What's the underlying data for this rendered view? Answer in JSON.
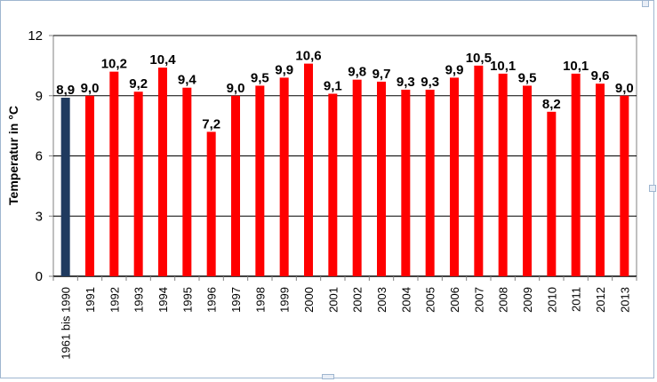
{
  "chart_data": {
    "type": "bar",
    "title": "",
    "xlabel": "",
    "ylabel": "Temperatur in °C",
    "ylim": [
      0,
      12
    ],
    "yticks": [
      "0",
      "3",
      "6",
      "9",
      "12"
    ],
    "grid": true,
    "categories": [
      "1961 bis 1990",
      "1991",
      "1992",
      "1993",
      "1994",
      "1995",
      "1996",
      "1997",
      "1998",
      "1999",
      "2000",
      "2001",
      "2002",
      "2003",
      "2004",
      "2005",
      "2006",
      "2007",
      "2008",
      "2009",
      "2010",
      "2011",
      "2012",
      "2013"
    ],
    "values": [
      8.9,
      9.0,
      10.2,
      9.2,
      10.4,
      9.4,
      7.2,
      9.0,
      9.5,
      9.9,
      10.6,
      9.1,
      9.8,
      9.7,
      9.3,
      9.3,
      9.9,
      10.5,
      10.1,
      9.5,
      8.2,
      10.1,
      9.6,
      9.0
    ],
    "value_labels": [
      "8,9",
      "9,0",
      "10,2",
      "9,2",
      "10,4",
      "9,4",
      "7,2",
      "9,0",
      "9,5",
      "9,9",
      "10,6",
      "9,1",
      "9,8",
      "9,7",
      "9,3",
      "9,3",
      "9,9",
      "10,5",
      "10,1",
      "9,5",
      "8,2",
      "10,1",
      "9,6",
      "9,0"
    ],
    "colors": {
      "reference": "#1f3a5f",
      "year": "#ff0000",
      "grid": "#000000",
      "axis": "#808080"
    }
  }
}
